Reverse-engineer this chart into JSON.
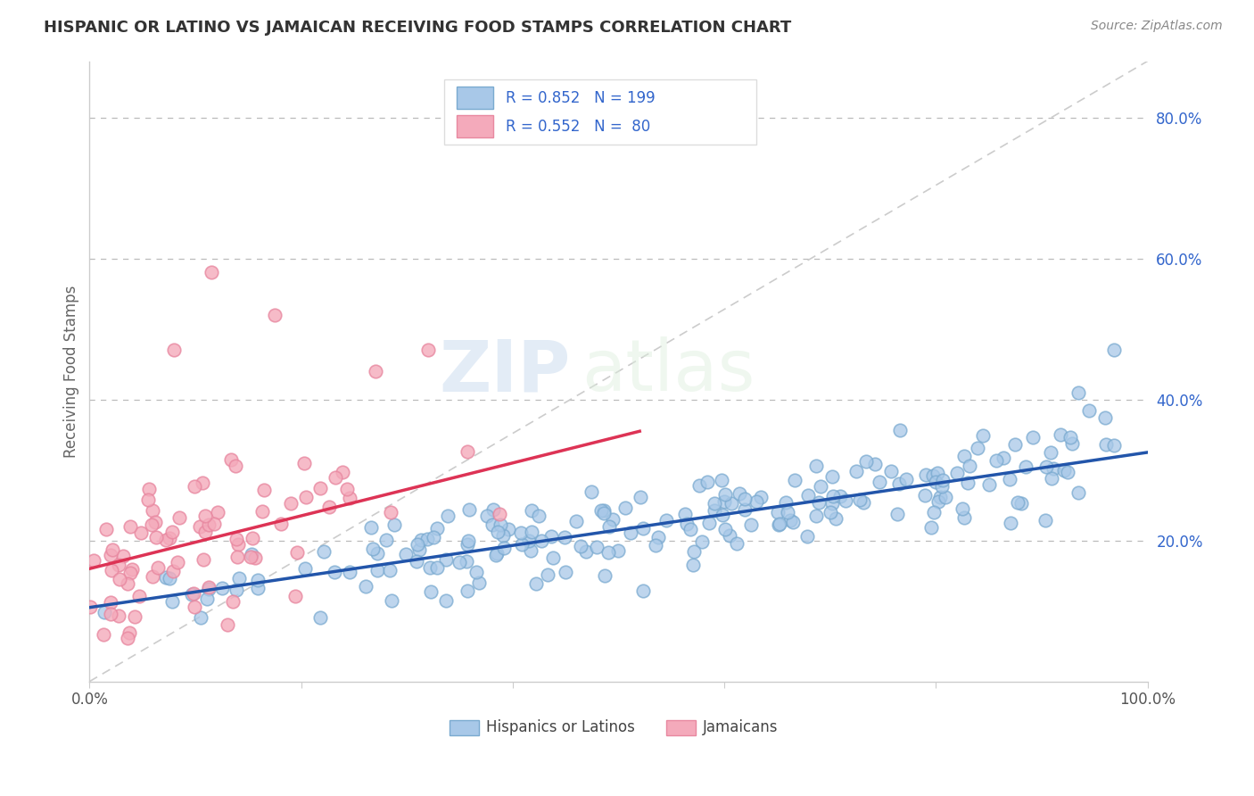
{
  "title": "HISPANIC OR LATINO VS JAMAICAN RECEIVING FOOD STAMPS CORRELATION CHART",
  "source_text": "Source: ZipAtlas.com",
  "ylabel": "Receiving Food Stamps",
  "legend_label_1": "Hispanics or Latinos",
  "legend_label_2": "Jamaicans",
  "legend_r1": "R = 0.852",
  "legend_n1": "N = 199",
  "legend_r2": "R = 0.552",
  "legend_n2": "N =  80",
  "color_blue": "#A8C8E8",
  "color_blue_edge": "#7AAAD0",
  "color_pink": "#F4AABB",
  "color_pink_edge": "#E888A0",
  "color_blue_line": "#2255AA",
  "color_pink_line": "#DD3355",
  "color_diag_line": "#CCCCCC",
  "color_legend_text": "#3366CC",
  "xlim": [
    0.0,
    1.0
  ],
  "ylim": [
    0.0,
    0.88
  ],
  "ytick_positions": [
    0.2,
    0.4,
    0.6,
    0.8
  ],
  "ytick_labels": [
    "20.0%",
    "40.0%",
    "60.0%",
    "80.0%"
  ],
  "xtick_positions": [
    0.0,
    0.2,
    0.4,
    0.6,
    0.8,
    1.0
  ],
  "xtick_labels": [
    "0.0%",
    "",
    "",
    "",
    "",
    "100.0%"
  ],
  "blue_line_x": [
    0.0,
    1.0
  ],
  "blue_line_y": [
    0.105,
    0.325
  ],
  "pink_line_x": [
    0.0,
    0.52
  ],
  "pink_line_y": [
    0.16,
    0.355
  ],
  "diag_line_x": [
    0.0,
    1.0
  ],
  "diag_line_y": [
    0.0,
    0.88
  ],
  "watermark_line1": "ZIP",
  "watermark_line2": "atlas",
  "background_color": "#FFFFFF",
  "grid_color": "#BBBBBB",
  "spine_color": "#CCCCCC"
}
